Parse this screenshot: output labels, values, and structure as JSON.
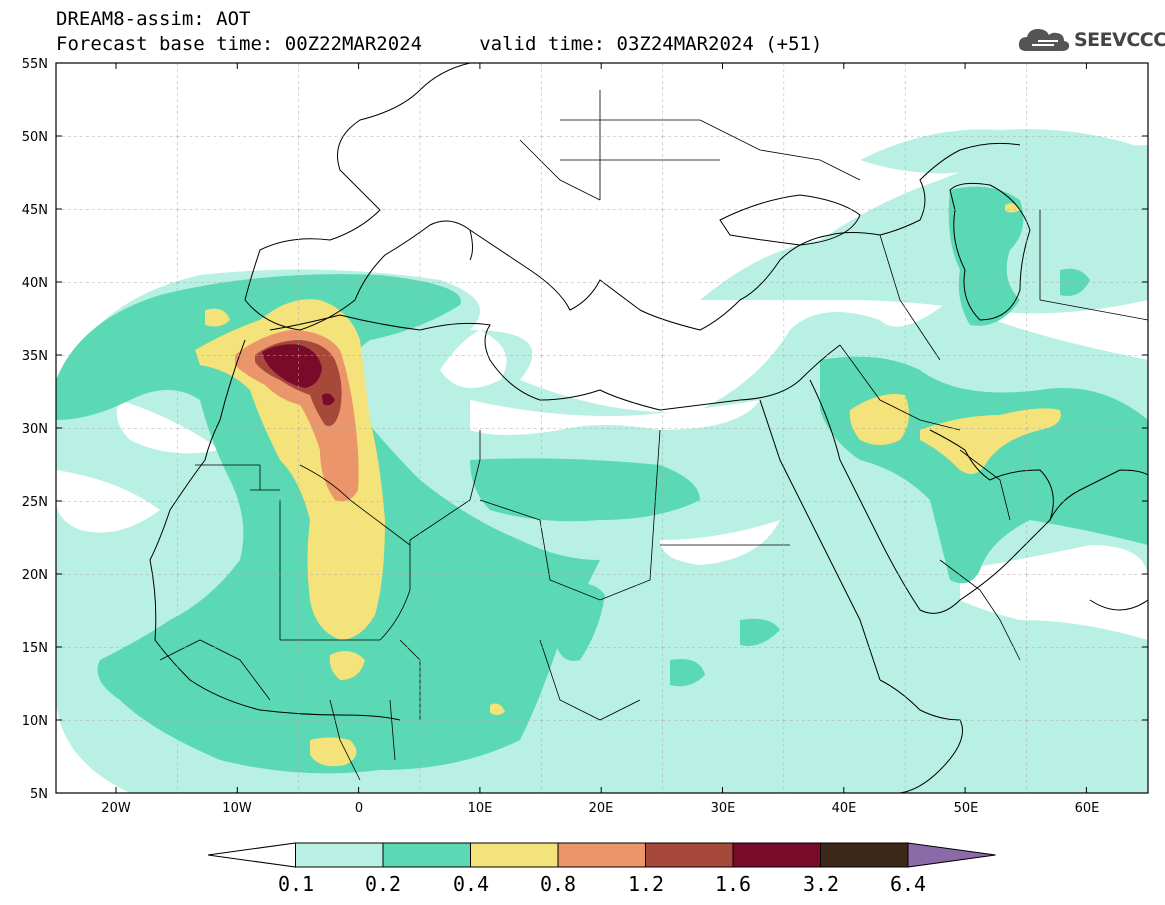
{
  "header": {
    "title_line1": "DREAM8-assim: AOT",
    "title_line2": "Forecast base time: 00Z22MAR2024     valid time: 03Z24MAR2024 (+51)"
  },
  "logo": {
    "text": "SEEVCCC",
    "icon": "cloud-icon"
  },
  "map": {
    "lat_labels": [
      "55N",
      "50N",
      "45N",
      "40N",
      "35N",
      "30N",
      "25N",
      "20N",
      "15N",
      "10N",
      "5N"
    ],
    "lon_labels": [
      "20W",
      "10W",
      "0",
      "10E",
      "20E",
      "30E",
      "40E",
      "50E",
      "60E"
    ]
  },
  "colorbar": {
    "colors": [
      "#ffffff",
      "#b9f0e4",
      "#5ad9b4",
      "#f4e27a",
      "#ea956a",
      "#a6493a",
      "#7a0a2a",
      "#3d2718",
      "#8c6aa8"
    ],
    "labels": [
      "0.1",
      "0.2",
      "0.4",
      "0.8",
      "1.2",
      "1.6",
      "3.2",
      "6.4"
    ]
  }
}
